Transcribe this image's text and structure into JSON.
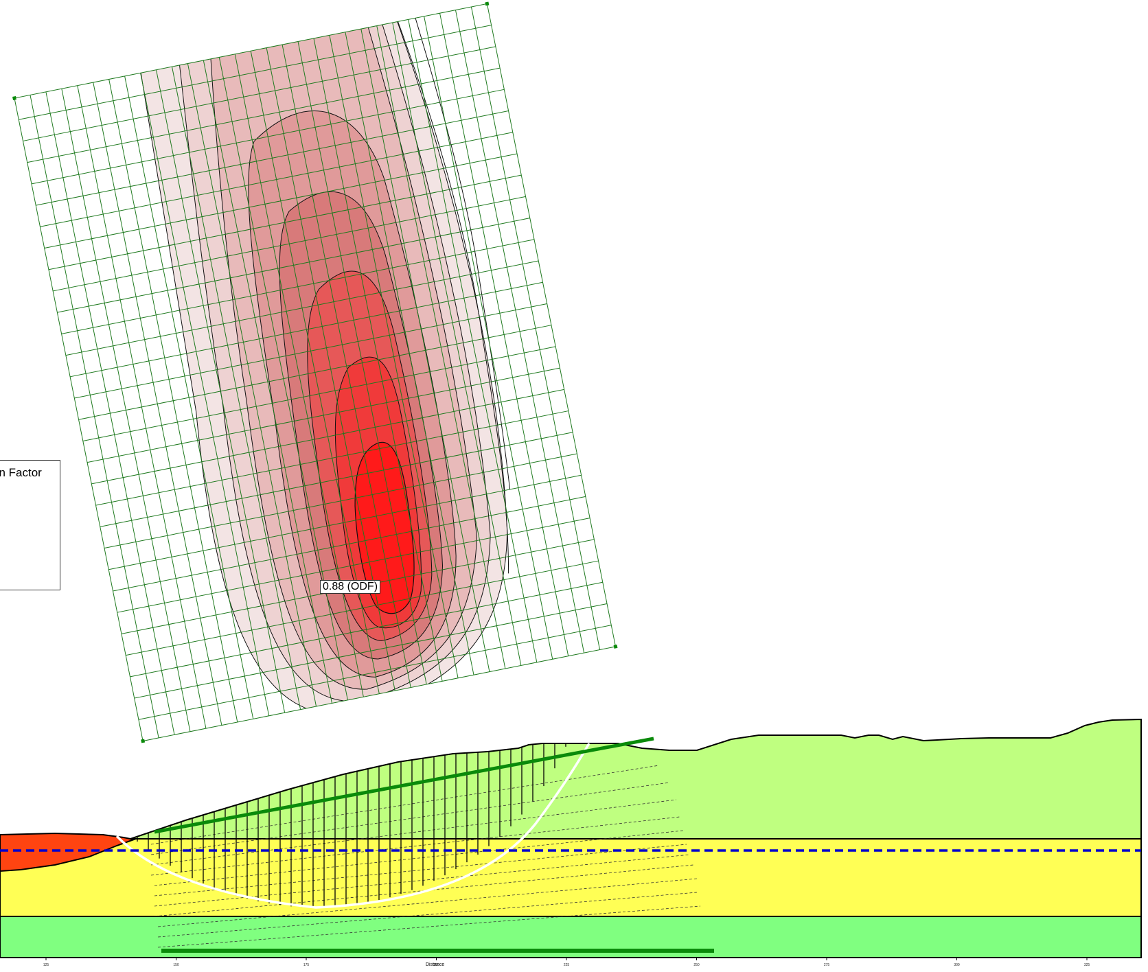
{
  "legend": {
    "title": "gn Factor"
  },
  "result": {
    "fos_label": "0.88 (ODF)"
  },
  "axis": {
    "title": "Distance",
    "ticks": [
      "125",
      "150",
      "175",
      "200",
      "225",
      "250",
      "275",
      "300",
      "325"
    ]
  },
  "colors": {
    "upper_soil": "#bfff80",
    "sand_layer": "#ffff55",
    "lower_soil": "#80ff80",
    "embankment": "#ff4411",
    "grid_lines": "#1f7a1f",
    "water_table": "#0000cc",
    "slip_surface": "#ffffff",
    "contour_lines": "#111111",
    "contour_fill_low": "#f3e4e4",
    "contour_fill_high": "#ff1a1a"
  }
}
